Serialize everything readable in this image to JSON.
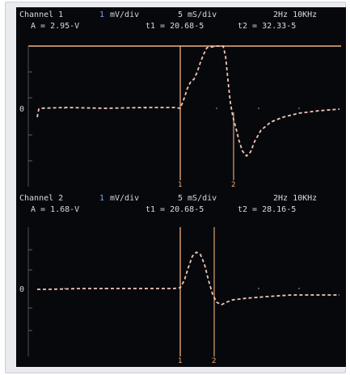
{
  "channels": [
    {
      "channel": "Channel 1",
      "scale_marker": "1",
      "volts_per_div": "mV/div",
      "time_per_div": "5 mS/div",
      "bandwidth": "2Hz 10KHz",
      "amplitude": "A = 2.95-V",
      "t1": "t1 = 20.68-5",
      "t2": "t2 = 32.33-5",
      "zero_label": "0",
      "cursor1_label": "1",
      "cursor2_label": "2"
    },
    {
      "channel": "Channel 2",
      "scale_marker": "1",
      "volts_per_div": "mV/div",
      "time_per_div": "5 mS/div",
      "bandwidth": "2Hz 10KHz",
      "amplitude": "A = 1.68-V",
      "t1": "t1 = 20.68-5",
      "t2": "t2 = 28.16-5",
      "zero_label": "0",
      "cursor1_label": "1",
      "cursor2_label": "2"
    }
  ],
  "colors": {
    "background": "#07080c",
    "trace": "#f1c7b8",
    "cursor": "#f0b07a",
    "header_text": "#d9d7e6",
    "accent": "#7fa0ff"
  }
}
